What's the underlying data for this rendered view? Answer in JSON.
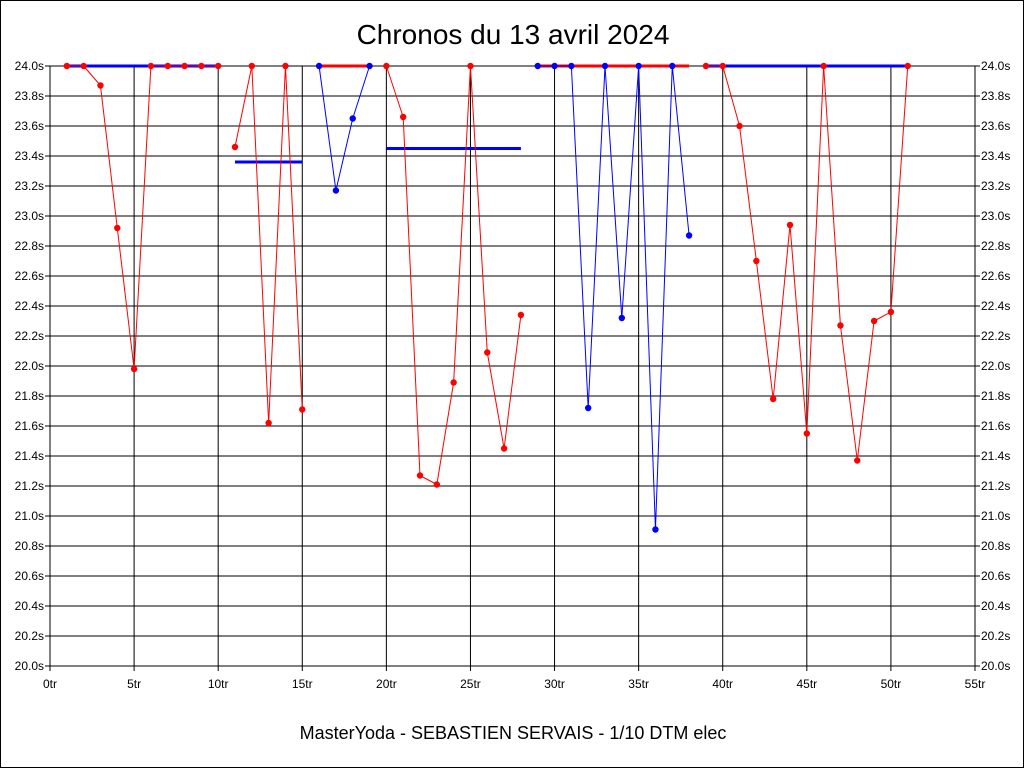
{
  "chart_data": {
    "type": "line",
    "title": "Chronos du 13 avril 2024",
    "subtitle": "MasterYoda - SEBASTIEN SERVAIS - 1/10 DTM elec",
    "xlim": [
      0,
      55
    ],
    "ylim": [
      20.0,
      24.0
    ],
    "x_ticks": [
      0,
      5,
      10,
      15,
      20,
      25,
      30,
      35,
      40,
      45,
      50,
      55
    ],
    "x_tick_suffix": "tr",
    "y_ticks": [
      20.0,
      20.2,
      20.4,
      20.6,
      20.8,
      21.0,
      21.2,
      21.4,
      21.6,
      21.8,
      22.0,
      22.2,
      22.4,
      22.6,
      22.8,
      23.0,
      23.2,
      23.4,
      23.6,
      23.8,
      24.0
    ],
    "y_tick_suffix": "s",
    "grid": true,
    "colors": {
      "red": "#ff0000",
      "blue": "#0000ff"
    },
    "points": [
      {
        "x": 1,
        "y": 24.0,
        "c": "red"
      },
      {
        "x": 2,
        "y": 24.0,
        "c": "red"
      },
      {
        "x": 3,
        "y": 23.87,
        "c": "red"
      },
      {
        "x": 4,
        "y": 22.92,
        "c": "red"
      },
      {
        "x": 5,
        "y": 21.98,
        "c": "red"
      },
      {
        "x": 6,
        "y": 24.0,
        "c": "red"
      },
      {
        "x": 7,
        "y": 24.0,
        "c": "red"
      },
      {
        "x": 8,
        "y": 24.0,
        "c": "red"
      },
      {
        "x": 9,
        "y": 24.0,
        "c": "red"
      },
      {
        "x": 10,
        "y": 24.0,
        "c": "red"
      },
      {
        "x": 11,
        "y": 23.46,
        "c": "red",
        "break": true
      },
      {
        "x": 12,
        "y": 24.0,
        "c": "red"
      },
      {
        "x": 13,
        "y": 21.62,
        "c": "red"
      },
      {
        "x": 14,
        "y": 24.0,
        "c": "red"
      },
      {
        "x": 15,
        "y": 21.71,
        "c": "red"
      },
      {
        "x": 16,
        "y": 24.0,
        "c": "blue",
        "break": true
      },
      {
        "x": 17,
        "y": 23.17,
        "c": "blue"
      },
      {
        "x": 18,
        "y": 23.65,
        "c": "blue"
      },
      {
        "x": 19,
        "y": 24.0,
        "c": "blue"
      },
      {
        "x": 20,
        "y": 24.0,
        "c": "red",
        "break": true
      },
      {
        "x": 21,
        "y": 23.66,
        "c": "red"
      },
      {
        "x": 22,
        "y": 21.27,
        "c": "red"
      },
      {
        "x": 23,
        "y": 21.21,
        "c": "red"
      },
      {
        "x": 24,
        "y": 21.89,
        "c": "red"
      },
      {
        "x": 25,
        "y": 24.0,
        "c": "red"
      },
      {
        "x": 26,
        "y": 22.09,
        "c": "red"
      },
      {
        "x": 27,
        "y": 21.45,
        "c": "red"
      },
      {
        "x": 28,
        "y": 22.34,
        "c": "red"
      },
      {
        "x": 29,
        "y": 24.0,
        "c": "blue",
        "break": true
      },
      {
        "x": 30,
        "y": 24.0,
        "c": "blue"
      },
      {
        "x": 31,
        "y": 24.0,
        "c": "blue"
      },
      {
        "x": 32,
        "y": 21.72,
        "c": "blue"
      },
      {
        "x": 33,
        "y": 24.0,
        "c": "blue"
      },
      {
        "x": 34,
        "y": 22.32,
        "c": "blue"
      },
      {
        "x": 35,
        "y": 24.0,
        "c": "blue"
      },
      {
        "x": 36,
        "y": 20.91,
        "c": "blue"
      },
      {
        "x": 37,
        "y": 24.0,
        "c": "blue"
      },
      {
        "x": 38,
        "y": 22.87,
        "c": "blue"
      },
      {
        "x": 39,
        "y": 24.0,
        "c": "red",
        "break": true
      },
      {
        "x": 40,
        "y": 24.0,
        "c": "red"
      },
      {
        "x": 41,
        "y": 23.6,
        "c": "red"
      },
      {
        "x": 42,
        "y": 22.7,
        "c": "red"
      },
      {
        "x": 43,
        "y": 21.78,
        "c": "red"
      },
      {
        "x": 44,
        "y": 22.94,
        "c": "red"
      },
      {
        "x": 45,
        "y": 21.55,
        "c": "red"
      },
      {
        "x": 46,
        "y": 24.0,
        "c": "red"
      },
      {
        "x": 47,
        "y": 22.27,
        "c": "red"
      },
      {
        "x": 48,
        "y": 21.37,
        "c": "red"
      },
      {
        "x": 49,
        "y": 22.3,
        "c": "red"
      },
      {
        "x": 50,
        "y": 22.36,
        "c": "red"
      },
      {
        "x": 51,
        "y": 24.0,
        "c": "red"
      }
    ],
    "averages": [
      {
        "x1": 1,
        "x2": 10,
        "y": 24.0,
        "c": "blue"
      },
      {
        "x1": 11,
        "x2": 15,
        "y": 23.36,
        "c": "blue"
      },
      {
        "x1": 16,
        "x2": 19,
        "y": 24.0,
        "c": "red"
      },
      {
        "x1": 20,
        "x2": 28,
        "y": 23.45,
        "c": "blue"
      },
      {
        "x1": 29,
        "x2": 38,
        "y": 24.0,
        "c": "red"
      },
      {
        "x1": 39,
        "x2": 51,
        "y": 24.0,
        "c": "blue"
      }
    ]
  }
}
